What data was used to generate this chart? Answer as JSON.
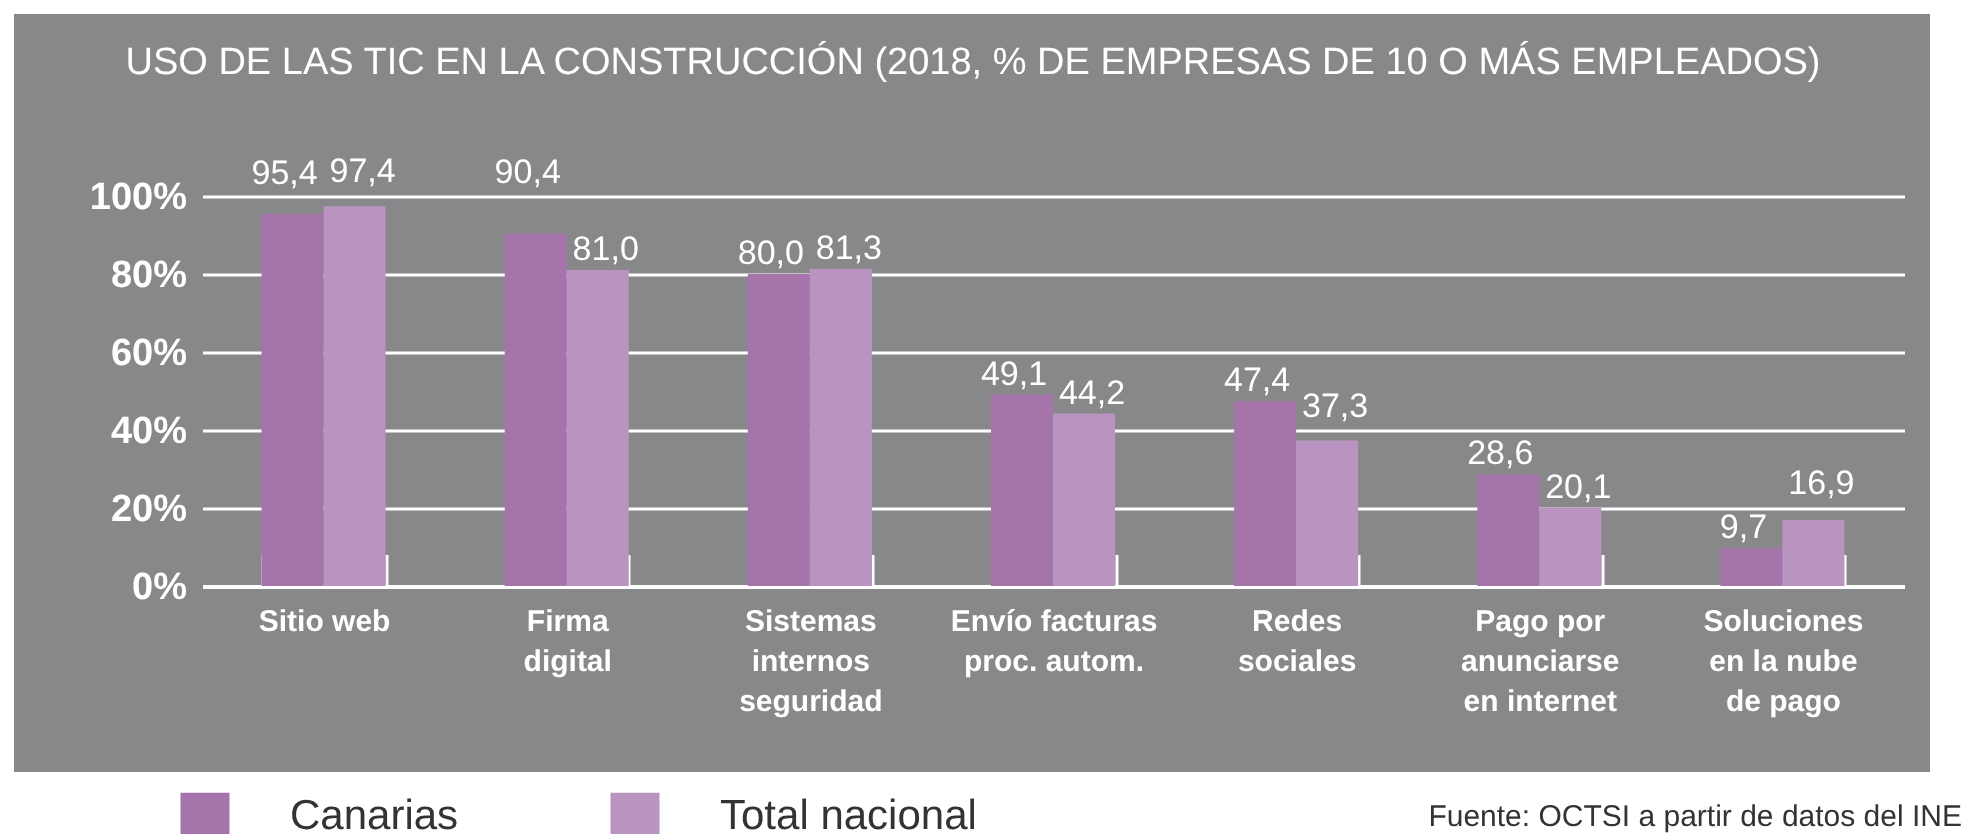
{
  "chart_data": {
    "type": "bar",
    "title": "USO DE LAS TIC EN LA CONSTRUCCIÓN (2018, % DE EMPRESAS DE 10 O MÁS EMPLEADOS)",
    "categories": [
      "Sitio web",
      "Firma\ndigital",
      "Sistemas\ninternos\nseguridad",
      "Envío facturas\nproc. autom.",
      "Redes\nsociales",
      "Pago por\nanunciarse\nen internet",
      "Soluciones\nen la nube\nde pago"
    ],
    "series": [
      {
        "name": "Canarias",
        "color": "#a474ab",
        "values": [
          95.4,
          90.4,
          80.0,
          49.1,
          47.4,
          28.6,
          9.7
        ],
        "value_labels": [
          "95,4",
          "90,4",
          "80,0",
          "49,1",
          "47,4",
          "28,6",
          "9,7"
        ]
      },
      {
        "name": "Total nacional",
        "color": "#b994c0",
        "values": [
          97.4,
          81.0,
          81.3,
          44.2,
          37.3,
          20.1,
          16.9
        ],
        "value_labels": [
          "97,4",
          "81,0",
          "81,3",
          "44,2",
          "37,3",
          "20,1",
          "16,9"
        ]
      }
    ],
    "ylim": [
      0,
      100
    ],
    "yticks": [
      {
        "value": 0,
        "label": "0%"
      },
      {
        "value": 20,
        "label": "20%"
      },
      {
        "value": 40,
        "label": "40%"
      },
      {
        "value": 60,
        "label": "60%"
      },
      {
        "value": 80,
        "label": "80%"
      },
      {
        "value": 100,
        "label": "100%"
      }
    ],
    "grid": "y",
    "legend": "bottom left",
    "annotations": [
      "Fuente: OCTSI a partir de datos del INE"
    ]
  }
}
